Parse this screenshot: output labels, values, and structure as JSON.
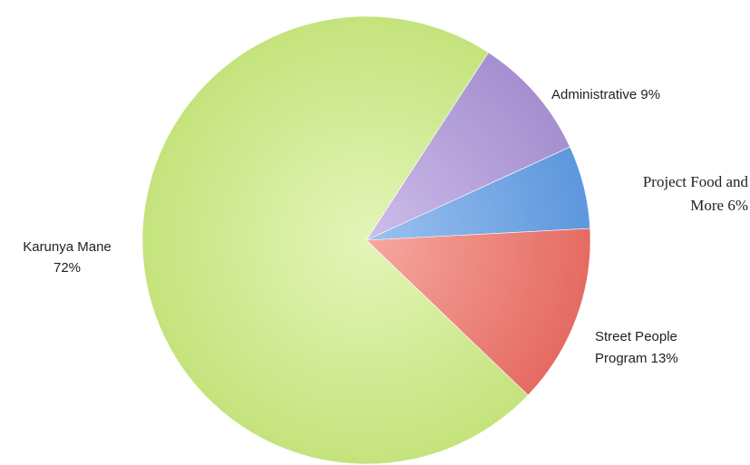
{
  "chart_data": {
    "type": "pie",
    "title": "",
    "legend": "none",
    "slices": [
      {
        "name": "Karunya Mane",
        "value": 72,
        "label_lines": [
          "Karunya Mane",
          "72%"
        ],
        "color": "#c4e37c",
        "color_light": "#e4f5b9"
      },
      {
        "name": "Administrative",
        "value": 9,
        "label_lines": [
          "Administrative 9%"
        ],
        "color": "#a58fcf",
        "color_light": "#cdbdea"
      },
      {
        "name": "Project Food and More",
        "value": 6,
        "label_lines": [
          "Project Food and",
          "More 6%"
        ],
        "color": "#5d97dd",
        "color_light": "#9cc2ef"
      },
      {
        "name": "Street People Program",
        "value": 13,
        "label_lines": [
          "Street People",
          "Program 13%"
        ],
        "color": "#e56b62",
        "color_light": "#f6a8a0"
      }
    ]
  }
}
